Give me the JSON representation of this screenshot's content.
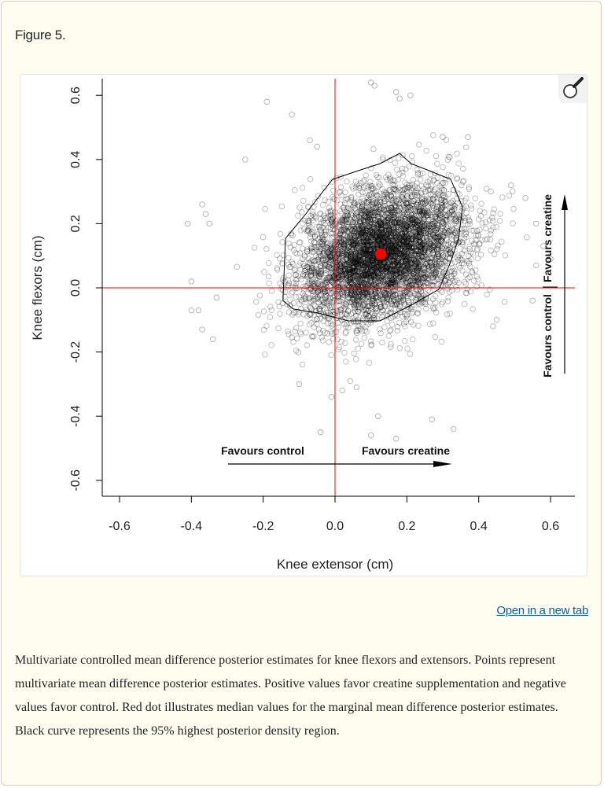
{
  "figure": {
    "title": "Figure 5.",
    "open_link": "Open in a new tab",
    "caption": "Multivariate controlled mean difference posterior estimates for knee flexors and extensors. Points represent multivariate mean difference posterior estimates. Positive values favor creatine supplementation and negative values favor control. Red dot illustrates median values for the marginal mean difference posterior estimates. Black curve represents the 95% highest posterior density region.",
    "zoom_icon": "magnifier-icon"
  },
  "chart_data": {
    "type": "scatter",
    "title": "",
    "xlabel": "Knee extensor (cm)",
    "ylabel": "Knee flexors (cm)",
    "xlim": [
      -0.67,
      0.67
    ],
    "ylim": [
      -0.65,
      0.65
    ],
    "xticks": [
      "-0.6",
      "-0.4",
      "-0.2",
      "0.0",
      "0.2",
      "0.4",
      "0.6"
    ],
    "yticks": [
      "-0.6",
      "-0.4",
      "-0.2",
      "0.0",
      "0.2",
      "0.4",
      "0.6"
    ],
    "grid": false,
    "reference_lines": {
      "x": 0,
      "y": 0,
      "color": "#ff0000"
    },
    "point_color": "#000000",
    "median": {
      "x": 0.127,
      "y": 0.105,
      "color": "#ff0000"
    },
    "hpd_95_contour": [
      [
        -0.145,
        -0.04
      ],
      [
        -0.138,
        0.154
      ],
      [
        -0.083,
        0.228
      ],
      [
        -0.05,
        0.277
      ],
      [
        -0.007,
        0.338
      ],
      [
        0.059,
        0.363
      ],
      [
        0.125,
        0.387
      ],
      [
        0.18,
        0.419
      ],
      [
        0.212,
        0.387
      ],
      [
        0.267,
        0.363
      ],
      [
        0.322,
        0.338
      ],
      [
        0.355,
        0.252
      ],
      [
        0.344,
        0.154
      ],
      [
        0.322,
        0.081
      ],
      [
        0.289,
        -0.005
      ],
      [
        0.212,
        -0.054
      ],
      [
        0.125,
        -0.103
      ],
      [
        0.037,
        -0.103
      ],
      [
        -0.05,
        -0.078
      ],
      [
        -0.116,
        -0.066
      ]
    ],
    "outlying_points": [
      [
        -0.41,
        0.2
      ],
      [
        -0.37,
        0.26
      ],
      [
        -0.36,
        0.23
      ],
      [
        -0.35,
        0.2
      ],
      [
        -0.4,
        -0.07
      ],
      [
        -0.37,
        -0.13
      ],
      [
        -0.34,
        -0.16
      ],
      [
        -0.38,
        -0.07
      ],
      [
        -0.4,
        0.02
      ],
      [
        -0.33,
        -0.03
      ],
      [
        -0.25,
        0.4
      ],
      [
        -0.19,
        0.58
      ],
      [
        -0.12,
        0.54
      ],
      [
        -0.07,
        0.46
      ],
      [
        -0.05,
        0.44
      ],
      [
        -0.1,
        -0.3
      ],
      [
        -0.04,
        -0.45
      ],
      [
        -0.01,
        -0.34
      ],
      [
        0.02,
        -0.32
      ],
      [
        0.06,
        -0.31
      ],
      [
        0.1,
        -0.46
      ],
      [
        0.12,
        -0.4
      ],
      [
        0.17,
        -0.47
      ],
      [
        0.27,
        -0.41
      ],
      [
        0.33,
        -0.44
      ],
      [
        0.1,
        0.64
      ],
      [
        0.11,
        0.63
      ],
      [
        0.17,
        0.61
      ],
      [
        0.18,
        0.59
      ],
      [
        0.21,
        0.6
      ],
      [
        0.49,
        0.32
      ],
      [
        0.53,
        0.28
      ],
      [
        0.56,
        0.2
      ],
      [
        0.58,
        0.13
      ],
      [
        0.56,
        0.07
      ],
      [
        0.55,
        -0.04
      ],
      [
        0.45,
        -0.1
      ],
      [
        0.44,
        -0.12
      ],
      [
        0.6,
        0.09
      ],
      [
        0.37,
        0.47
      ],
      [
        0.3,
        0.47
      ]
    ],
    "annotations": {
      "x_negative": "Favours control",
      "x_positive": "Favours creatine",
      "y_negative": "Favours control",
      "y_positive": "Favours creatine"
    }
  }
}
